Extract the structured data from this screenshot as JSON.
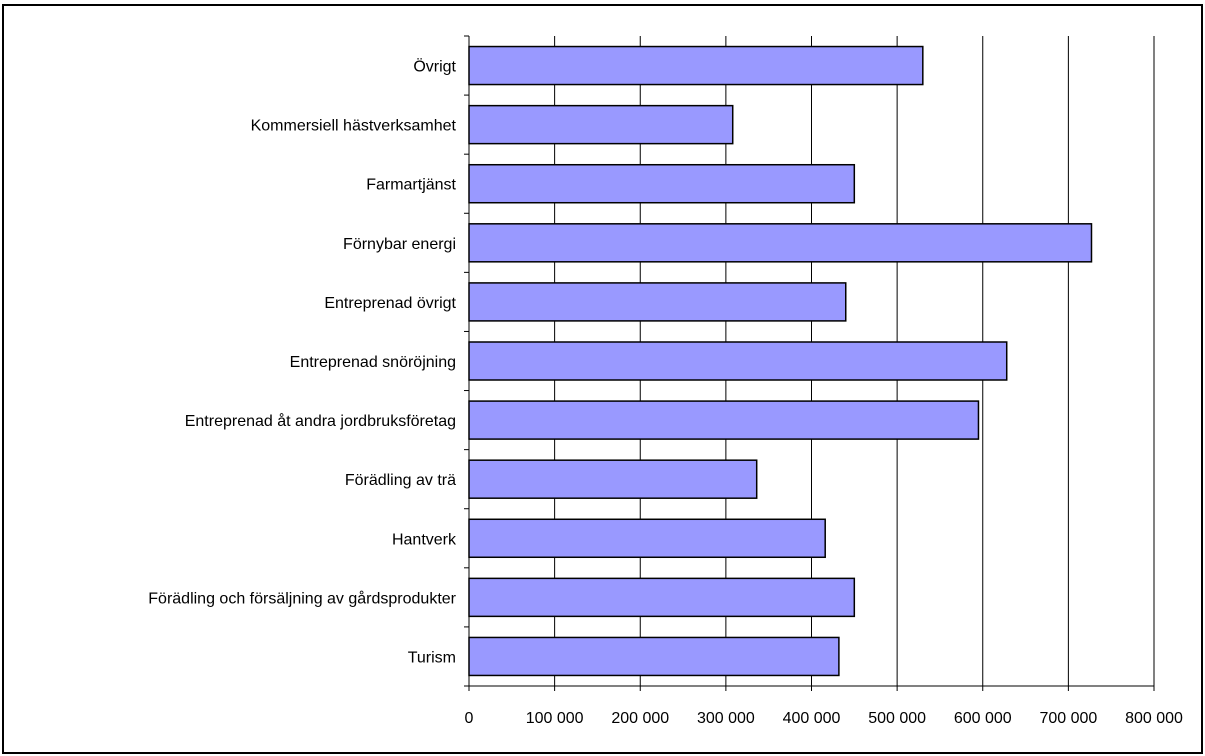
{
  "chart_data": {
    "type": "bar",
    "orientation": "horizontal",
    "categories": [
      "Övrigt",
      "Kommersiell hästverksamhet",
      "Farmartjänst",
      "Förnybar energi",
      "Entreprenad övrigt",
      "Entreprenad snöröjning",
      "Entreprenad åt andra jordbruksföretag",
      "Förädling av trä",
      "Hantverk",
      "Förädling och försäljning av gårdsprodukter",
      "Turism"
    ],
    "values": [
      530000,
      308000,
      450000,
      727000,
      440000,
      628000,
      595000,
      336000,
      416000,
      450000,
      432000
    ],
    "xlim": [
      0,
      800000
    ],
    "x_ticks": [
      0,
      100000,
      200000,
      300000,
      400000,
      500000,
      600000,
      700000,
      800000
    ],
    "x_tick_labels": [
      "0",
      "100 000",
      "200 000",
      "300 000",
      "400 000",
      "500 000",
      "600 000",
      "700 000",
      "800 000"
    ],
    "title": "",
    "xlabel": "",
    "ylabel": "",
    "grid": "vertical major gridlines",
    "legend": "none",
    "colors": {
      "bar_fill": "#9999ff",
      "bar_stroke": "#000000",
      "grid": "#000000"
    }
  }
}
